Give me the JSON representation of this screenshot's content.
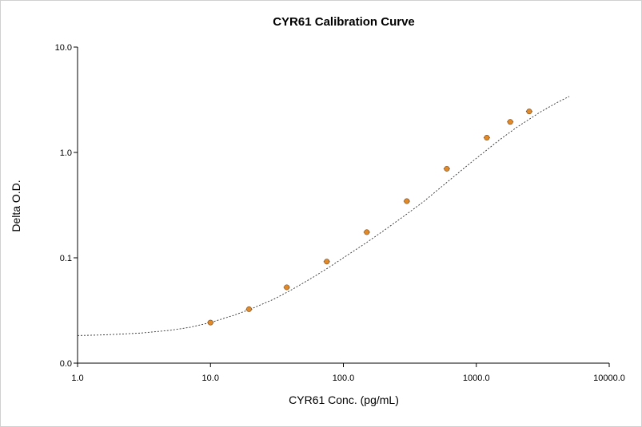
{
  "chart_data": {
    "type": "scatter",
    "title": "CYR61 Calibration Curve",
    "xlabel": "CYR61 Conc. (pg/mL)",
    "ylabel": "Delta O.D.",
    "x_scale": "log",
    "y_scale": "log",
    "xlim": [
      1.0,
      10000.0
    ],
    "ylim": [
      0.01,
      10.0
    ],
    "x_ticks": [
      {
        "value": 1,
        "label": "1.0"
      },
      {
        "value": 10,
        "label": "10.0"
      },
      {
        "value": 100,
        "label": "100.0"
      },
      {
        "value": 1000,
        "label": "1000.0"
      },
      {
        "value": 10000,
        "label": "10000.0"
      }
    ],
    "y_ticks": [
      {
        "value": 0.01,
        "label": "0.0"
      },
      {
        "value": 0.1,
        "label": "0.1"
      },
      {
        "value": 1,
        "label": "1.0"
      },
      {
        "value": 10,
        "label": "10.0"
      }
    ],
    "grid": false,
    "series": [
      {
        "kind": "points",
        "color": "#e08a2a",
        "edge_color": "#7a4a1a",
        "x": [
          10,
          19.5,
          37.5,
          75,
          150,
          300,
          600,
          1200,
          1800,
          2500
        ],
        "y": [
          0.0243,
          0.0325,
          0.0525,
          0.092,
          0.175,
          0.345,
          0.7,
          1.38,
          1.95,
          2.45
        ]
      },
      {
        "kind": "fit-line",
        "color": "#333333",
        "style": "dotted",
        "x": [
          1,
          1.5,
          2,
          3,
          5,
          7,
          10,
          15,
          20,
          30,
          40,
          60,
          80,
          100,
          150,
          200,
          300,
          400,
          600,
          800,
          1000,
          1500,
          2000,
          3000,
          4000,
          5000
        ],
        "y": [
          0.0183,
          0.0185,
          0.0188,
          0.0193,
          0.0205,
          0.0219,
          0.0243,
          0.0285,
          0.0325,
          0.0405,
          0.049,
          0.066,
          0.083,
          0.1,
          0.14,
          0.18,
          0.26,
          0.34,
          0.52,
          0.7,
          0.88,
          1.32,
          1.72,
          2.4,
          2.95,
          3.4
        ]
      }
    ]
  }
}
